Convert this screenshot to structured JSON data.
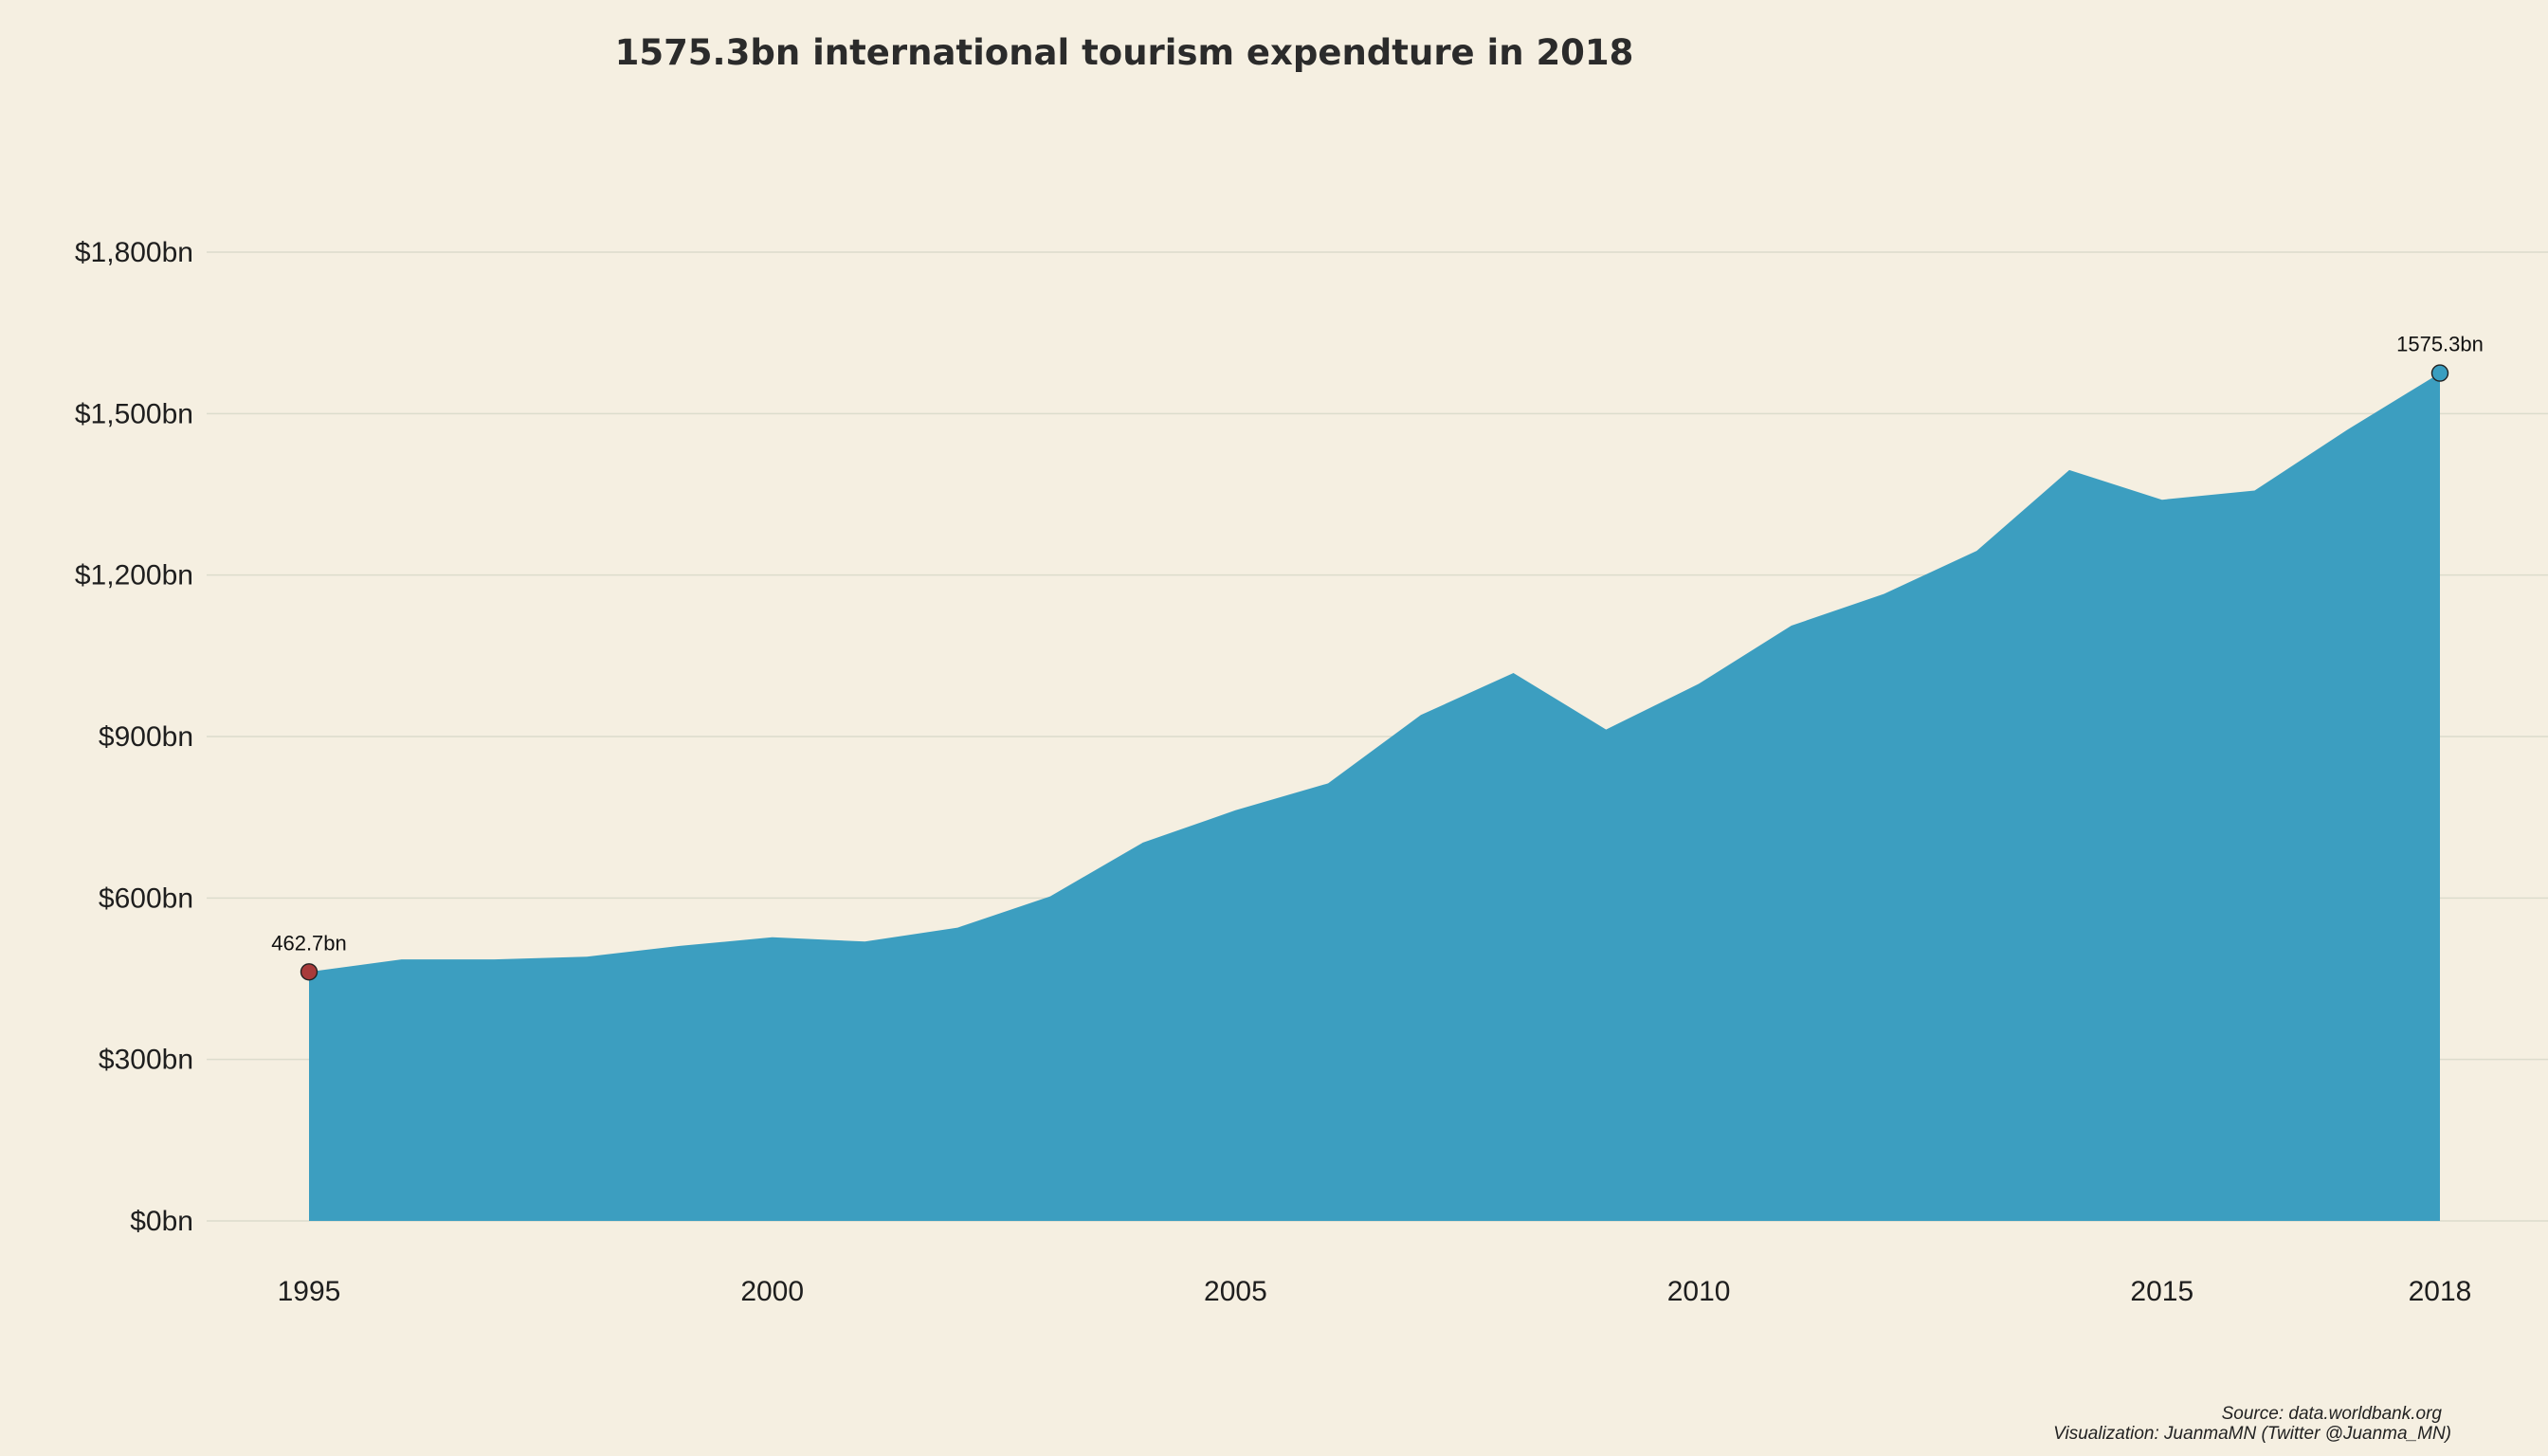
{
  "chart_data": {
    "type": "area",
    "title": "1575.3bn international tourism expendture in 2018",
    "xlabel": "",
    "ylabel": "",
    "x": [
      1995,
      1996,
      1997,
      1998,
      1999,
      2000,
      2001,
      2002,
      2003,
      2004,
      2005,
      2006,
      2007,
      2008,
      2009,
      2010,
      2011,
      2012,
      2013,
      2014,
      2015,
      2016,
      2017,
      2018
    ],
    "series": [
      {
        "values": [
          462.7,
          486,
          486,
          491,
          511,
          527,
          519,
          545,
          603,
          703,
          763,
          813,
          940,
          1018,
          913,
          998,
          1106,
          1165,
          1245,
          1395,
          1340,
          1357,
          1470,
          1575.3
        ]
      }
    ],
    "ylim": [
      0,
      1800
    ],
    "xlim": [
      1995,
      2018
    ],
    "yticks": [
      0,
      300,
      600,
      900,
      1200,
      1500,
      1800
    ],
    "ytick_labels": [
      "$0bn",
      "$300bn",
      "$600bn",
      "$900bn",
      "$1,200bn",
      "$1,500bn",
      "$1,800bn"
    ],
    "xticks": [
      1995,
      2000,
      2005,
      2010,
      2015,
      2018
    ],
    "xtick_labels": [
      "1995",
      "2000",
      "2005",
      "2010",
      "2015",
      "2018"
    ],
    "annotations": [
      {
        "x": 1995,
        "y": 462.7,
        "label": "462.7bn",
        "color": "#a83a3a"
      },
      {
        "x": 2018,
        "y": 1575.3,
        "label": "1575.3bn",
        "color": "#3a9ec0"
      }
    ],
    "grid": true,
    "legend": "none",
    "fill_color": "#3c9ec0",
    "background": "#f5efe1"
  },
  "caption": {
    "source": "Source: data.worldbank.org",
    "credit": "Visualization: JuanmaMN (Twitter @Juanma_MN)"
  }
}
